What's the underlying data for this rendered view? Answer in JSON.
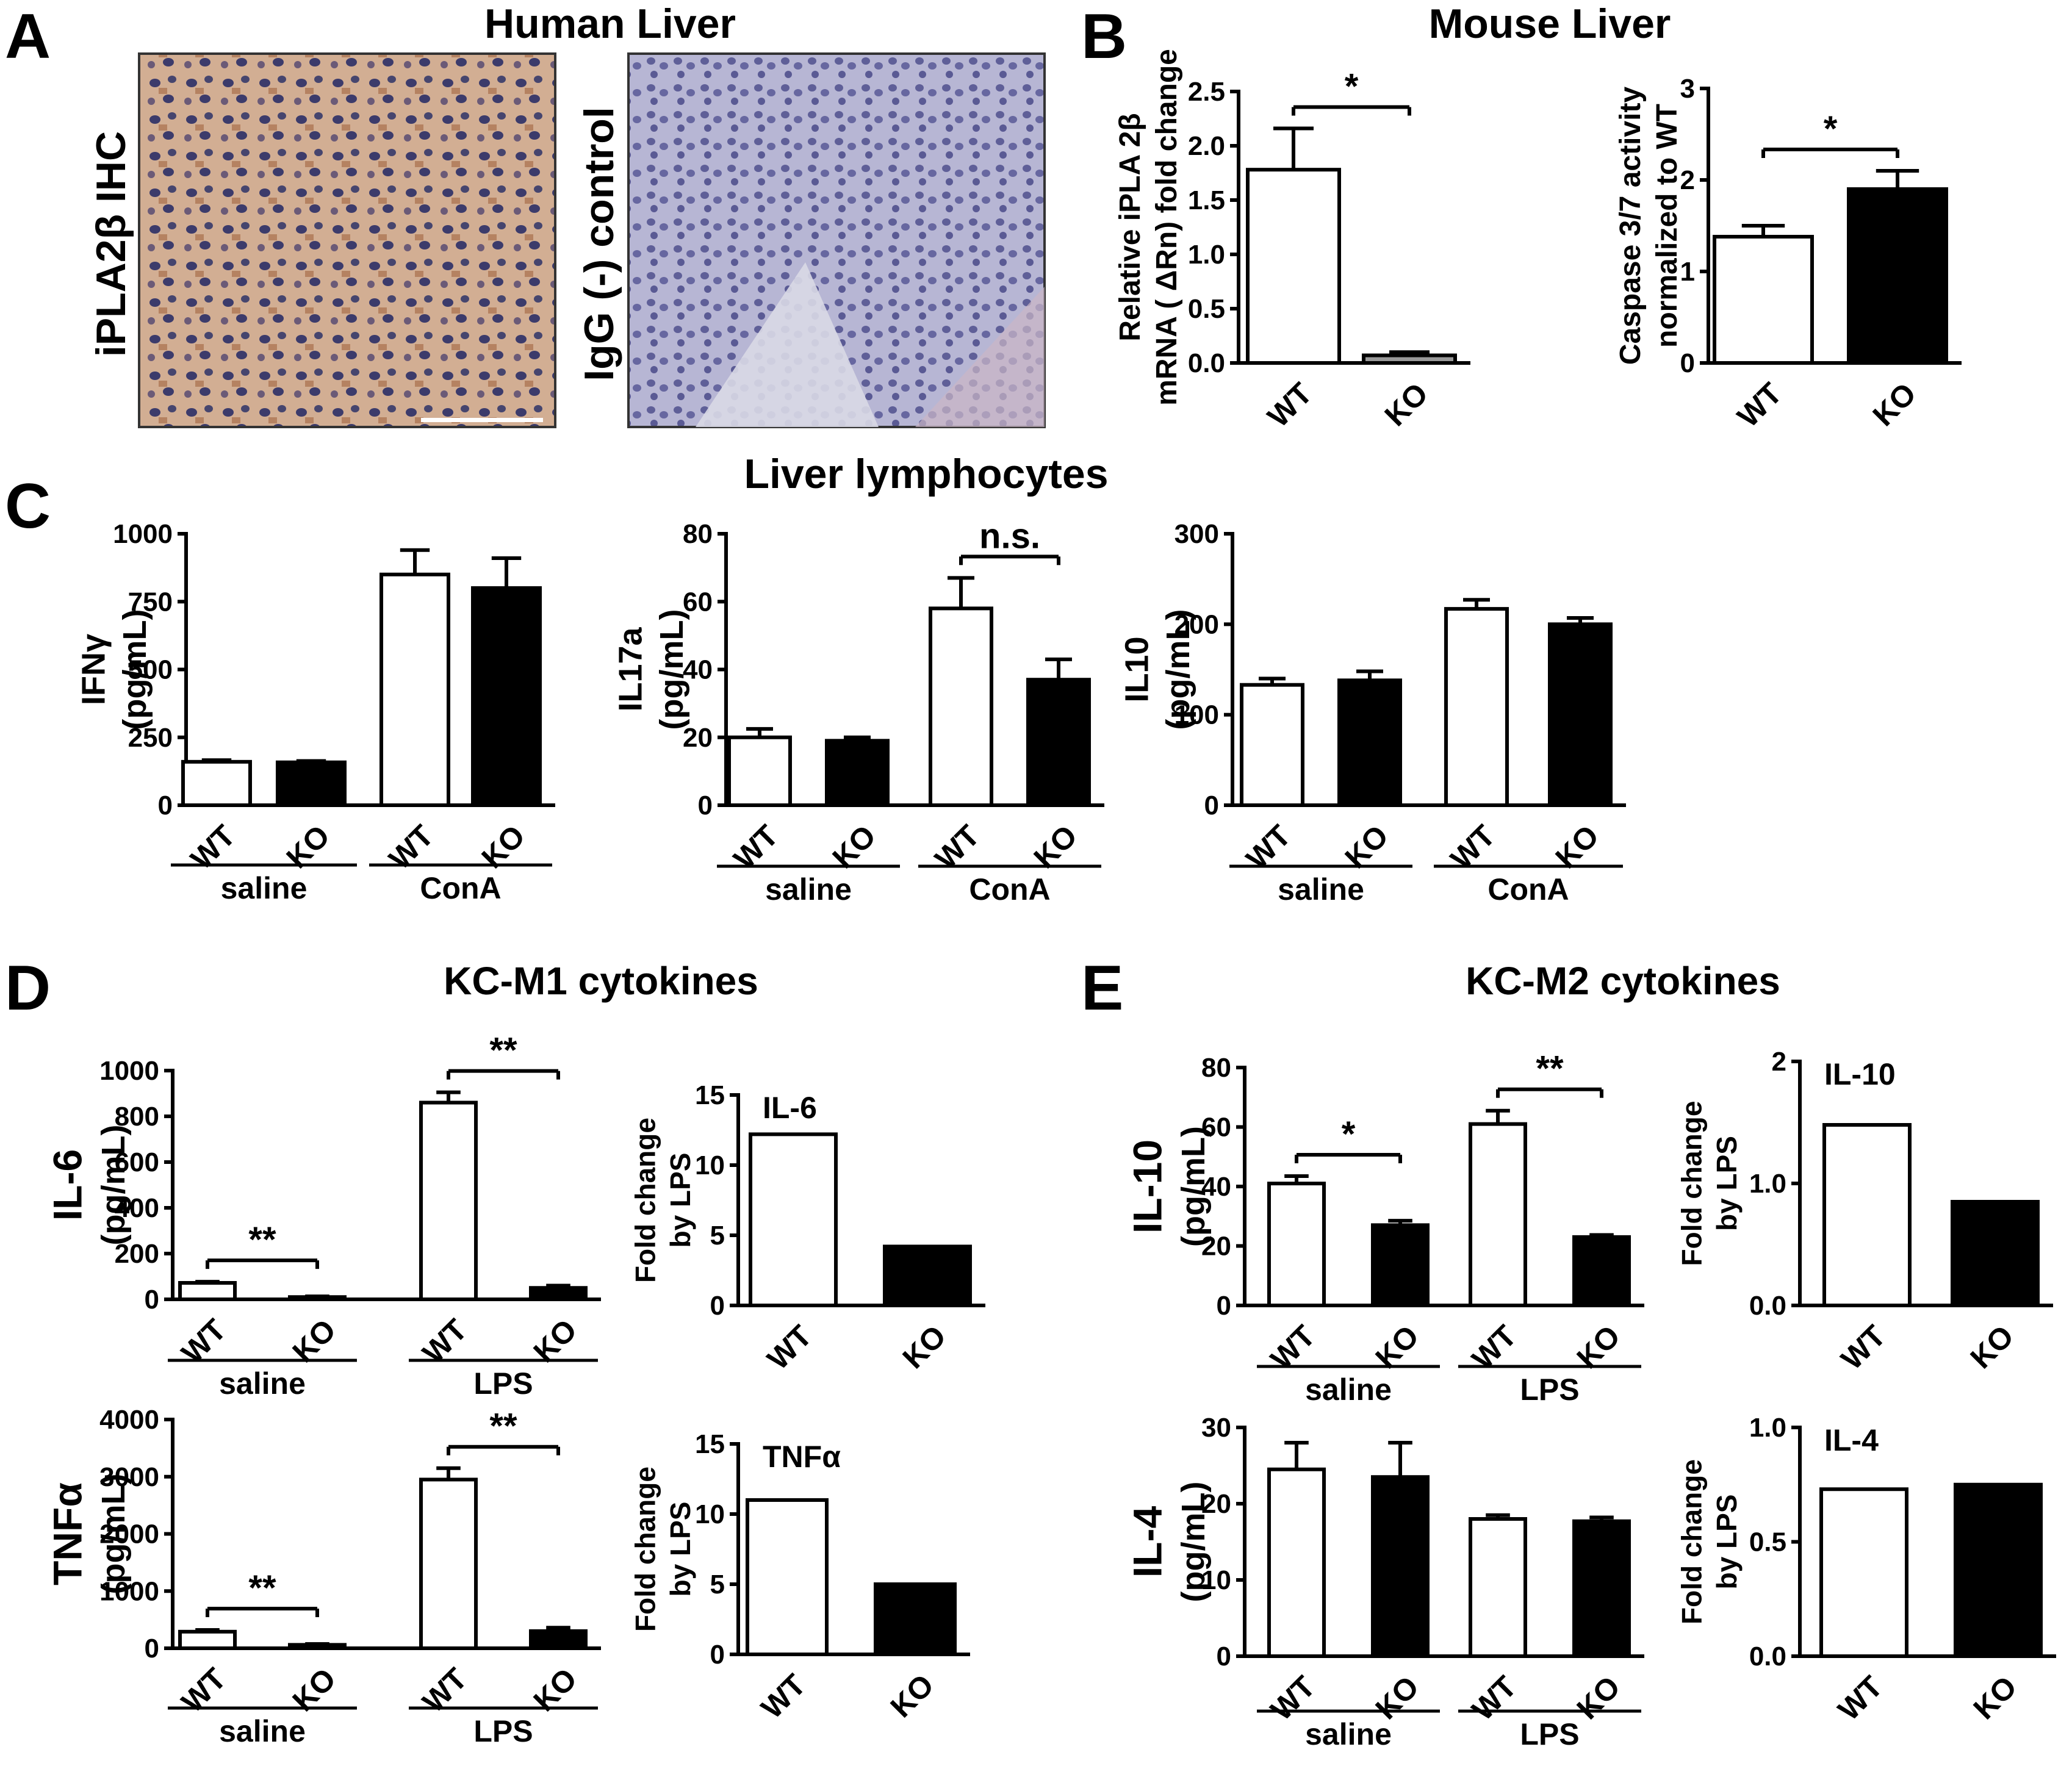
{
  "panel_labels": [
    "A",
    "B",
    "C",
    "D",
    "E"
  ],
  "titles": {
    "human_liver": "Human Liver",
    "mouse_liver": "Mouse Liver",
    "liver_lymphocytes": "Liver lymphocytes",
    "kc_m1": "KC-M1 cytokines",
    "kc_m2": "KC-M2 cytokines"
  },
  "micrographs": {
    "ihc_label": "iPLA2β IHC",
    "control_label": "IgG (-) control"
  },
  "colors": {
    "wt_fill": "#ffffff",
    "ko_fill": "#000000",
    "ihc_bg": "#c8a48a",
    "ihc_nuclei": "#3c3b6b",
    "control_bg": "#b4b4d2"
  },
  "chart_data": [
    {
      "id": "B1",
      "type": "bar",
      "ylabel": [
        "Relative iPLA 2β",
        "mRNA ( ΔRn) fold change"
      ],
      "categories": [
        "WT",
        "KO"
      ],
      "values": [
        1.78,
        0.07
      ],
      "errors": [
        0.38,
        0.03
      ],
      "ylim": [
        0,
        2.5
      ],
      "yticks": [
        "0.0",
        "0.5",
        "1.0",
        "1.5",
        "2.0",
        "2.5"
      ],
      "ko_color": "#999999",
      "annotations": [
        "*"
      ]
    },
    {
      "id": "B2",
      "type": "bar",
      "ylabel": [
        "Caspase 3/7 activity",
        "normalized to WT"
      ],
      "categories": [
        "WT",
        "KO"
      ],
      "values": [
        1.38,
        1.9
      ],
      "errors": [
        0.12,
        0.2
      ],
      "ylim": [
        0,
        3
      ],
      "yticks": [
        "0",
        "1",
        "2",
        "3"
      ],
      "annotations": [
        "*"
      ]
    },
    {
      "id": "C1",
      "type": "bar",
      "ylabel": [
        "IFNγ",
        "(pg/mL)"
      ],
      "categories": [
        "WT",
        "KO",
        "WT",
        "KO"
      ],
      "groups": [
        "saline",
        "ConA"
      ],
      "values": [
        160,
        158,
        850,
        800
      ],
      "errors": [
        6,
        5,
        90,
        110
      ],
      "ylim": [
        0,
        1000
      ],
      "yticks": [
        "0",
        "250",
        "500",
        "750",
        "1000"
      ]
    },
    {
      "id": "C2",
      "type": "bar",
      "ylabel": [
        "IL17a",
        "(pg/mL)"
      ],
      "categories": [
        "WT",
        "KO",
        "WT",
        "KO"
      ],
      "groups": [
        "saline",
        "ConA"
      ],
      "values": [
        20,
        19,
        58,
        37
      ],
      "errors": [
        2.5,
        1,
        9,
        6
      ],
      "ylim": [
        0,
        80
      ],
      "yticks": [
        "0",
        "20",
        "40",
        "60",
        "80"
      ],
      "annotations": [
        "n.s."
      ]
    },
    {
      "id": "C3",
      "type": "bar",
      "ylabel": [
        "IL10",
        "(pg/mL)"
      ],
      "categories": [
        "WT",
        "KO",
        "WT",
        "KO"
      ],
      "groups": [
        "saline",
        "ConA"
      ],
      "values": [
        133,
        138,
        217,
        200
      ],
      "errors": [
        7,
        10,
        10,
        7
      ],
      "ylim": [
        0,
        300
      ],
      "yticks": [
        "0",
        "100",
        "200",
        "300"
      ]
    },
    {
      "id": "D1",
      "type": "bar",
      "ylabel": [
        "IL-6",
        "(pg/mL)"
      ],
      "categories": [
        "WT",
        "KO",
        "WT",
        "KO"
      ],
      "groups": [
        "saline",
        "LPS"
      ],
      "values": [
        72,
        10,
        860,
        50
      ],
      "errors": [
        5,
        3,
        45,
        10
      ],
      "ylim": [
        0,
        1000
      ],
      "yticks": [
        "0",
        "200",
        "400",
        "600",
        "800",
        "1000"
      ],
      "annotations": [
        "**",
        "**"
      ]
    },
    {
      "id": "D2",
      "type": "bar",
      "title": "IL-6",
      "ylabel": [
        "Fold change",
        "by LPS"
      ],
      "categories": [
        "WT",
        "KO"
      ],
      "values": [
        12.2,
        4.2
      ],
      "ylim": [
        0,
        15
      ],
      "yticks": [
        "0",
        "5",
        "10",
        "15"
      ]
    },
    {
      "id": "D3",
      "type": "bar",
      "ylabel": [
        "TNFα",
        "(pg/mL)"
      ],
      "categories": [
        "WT",
        "KO",
        "WT",
        "KO"
      ],
      "groups": [
        "saline",
        "LPS"
      ],
      "values": [
        290,
        60,
        2950,
        300
      ],
      "errors": [
        30,
        15,
        200,
        60
      ],
      "ylim": [
        0,
        4000
      ],
      "yticks": [
        "0",
        "1000",
        "2000",
        "3000",
        "4000"
      ],
      "annotations": [
        "**",
        "**"
      ]
    },
    {
      "id": "D4",
      "type": "bar",
      "title": "TNFα",
      "ylabel": [
        "Fold change",
        "by LPS"
      ],
      "categories": [
        "WT",
        "KO"
      ],
      "values": [
        11,
        5
      ],
      "ylim": [
        0,
        15
      ],
      "yticks": [
        "0",
        "5",
        "10",
        "15"
      ]
    },
    {
      "id": "E1",
      "type": "bar",
      "ylabel": [
        "IL-10",
        "(pg/mL)"
      ],
      "categories": [
        "WT",
        "KO",
        "WT",
        "KO"
      ],
      "groups": [
        "saline",
        "LPS"
      ],
      "values": [
        41,
        27,
        61,
        23
      ],
      "errors": [
        2.5,
        1.5,
        4.5,
        0.7
      ],
      "ylim": [
        0,
        80
      ],
      "yticks": [
        "0",
        "20",
        "40",
        "60",
        "80"
      ],
      "annotations": [
        "*",
        "**"
      ]
    },
    {
      "id": "E2",
      "type": "bar",
      "title": "IL-10",
      "ylabel": [
        "Fold change",
        "by LPS"
      ],
      "categories": [
        "WT",
        "KO"
      ],
      "values": [
        1.48,
        0.85
      ],
      "ylim": [
        0,
        2
      ],
      "yticks": [
        "0.0",
        "1.0",
        "2"
      ],
      "ytick_values": [
        0,
        1,
        2
      ]
    },
    {
      "id": "E3",
      "type": "bar",
      "ylabel": [
        "IL-4",
        "(pg/mL)"
      ],
      "categories": [
        "WT",
        "KO",
        "WT",
        "KO"
      ],
      "groups": [
        "saline",
        "LPS"
      ],
      "values": [
        24.5,
        23.5,
        18,
        17.7
      ],
      "errors": [
        3.5,
        4.5,
        0.5,
        0.5
      ],
      "ylim": [
        0,
        30
      ],
      "yticks": [
        "0",
        "10",
        "20",
        "30"
      ]
    },
    {
      "id": "E4",
      "type": "bar",
      "title": "IL-4",
      "ylabel": [
        "Fold change",
        "by LPS"
      ],
      "categories": [
        "WT",
        "KO"
      ],
      "values": [
        0.73,
        0.75
      ],
      "ylim": [
        0,
        1
      ],
      "yticks": [
        "0.0",
        "0.5",
        "1.0"
      ]
    }
  ]
}
